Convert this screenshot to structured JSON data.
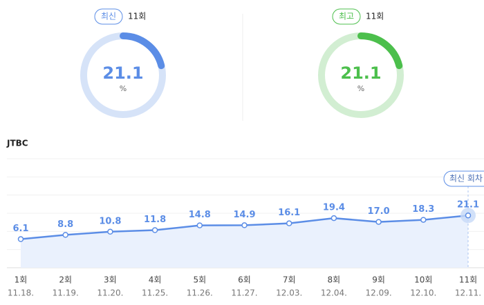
{
  "gauges": [
    {
      "badge": "최신",
      "episode": "11회",
      "value": 21.1,
      "unit": "%",
      "color": "#5b8de6",
      "track": "#d6e3f8"
    },
    {
      "badge": "최고",
      "episode": "11회",
      "value": 21.1,
      "unit": "%",
      "color": "#4cbf4c",
      "track": "#d2eed2"
    }
  ],
  "chart_data": {
    "type": "line",
    "title": "JTBC",
    "categories": [
      "1회",
      "2회",
      "3회",
      "4회",
      "5회",
      "6회",
      "7회",
      "8회",
      "9회",
      "10회",
      "11회"
    ],
    "dates": [
      "11.18.",
      "11.19.",
      "11.20.",
      "11.25.",
      "11.26.",
      "11.27.",
      "12.03.",
      "12.04.",
      "12.09.",
      "12.10.",
      "12.11."
    ],
    "values": [
      6.1,
      8.8,
      10.8,
      11.8,
      14.8,
      14.9,
      16.1,
      19.4,
      17.0,
      18.3,
      21.1
    ],
    "value_labels": [
      "6.1",
      "8.8",
      "10.8",
      "11.8",
      "14.8",
      "14.9",
      "16.1",
      "19.4",
      "17.0",
      "18.3",
      "21.1"
    ],
    "color": "#5b8de6",
    "ylim": [
      -12,
      57
    ],
    "grid": true,
    "annotation": "최신 회차"
  }
}
